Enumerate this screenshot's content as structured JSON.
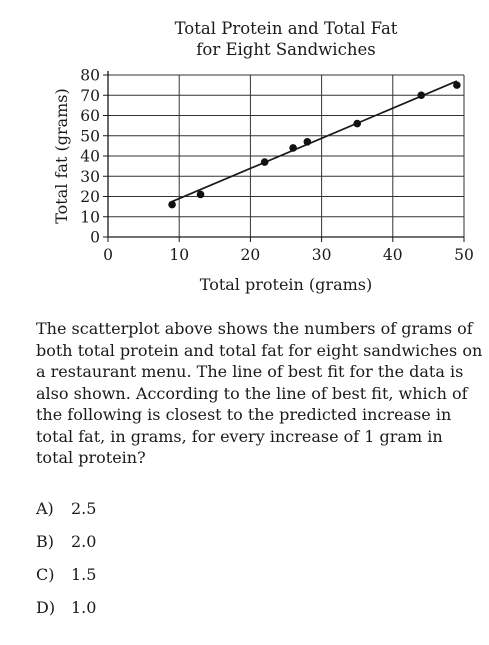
{
  "question": {
    "text": "The scatterplot above shows the numbers of grams of both total protein and total fat for eight sandwiches on a restaurant menu.  The line of best fit for the data is also shown.  According to the line of best fit, which of the following is closest to the predicted increase in total fat, in grams, for every increase of 1 gram in total protein?"
  },
  "choices": [
    {
      "letter": "A)",
      "value": "2.5"
    },
    {
      "letter": "B)",
      "value": "2.0"
    },
    {
      "letter": "C)",
      "value": "1.5"
    },
    {
      "letter": "D)",
      "value": "1.0"
    }
  ],
  "chart_data": {
    "type": "scatter",
    "title": "Total Protein and Total Fat\nfor Eight Sandwiches",
    "xlabel": "Total protein (grams)",
    "ylabel": "Total fat (grams)",
    "xlim": [
      0,
      50
    ],
    "ylim": [
      0,
      80
    ],
    "xticks": [
      0,
      10,
      20,
      30,
      40,
      50
    ],
    "yticks": [
      0,
      10,
      20,
      30,
      40,
      50,
      60,
      70,
      80
    ],
    "grid": true,
    "points": [
      {
        "x": 9,
        "y": 16
      },
      {
        "x": 13,
        "y": 21
      },
      {
        "x": 22,
        "y": 37
      },
      {
        "x": 26,
        "y": 44
      },
      {
        "x": 28,
        "y": 47
      },
      {
        "x": 35,
        "y": 56
      },
      {
        "x": 44,
        "y": 70
      },
      {
        "x": 49,
        "y": 75
      }
    ],
    "best_fit_line": [
      {
        "x": 9,
        "y": 17.5
      },
      {
        "x": 49,
        "y": 77
      }
    ]
  }
}
